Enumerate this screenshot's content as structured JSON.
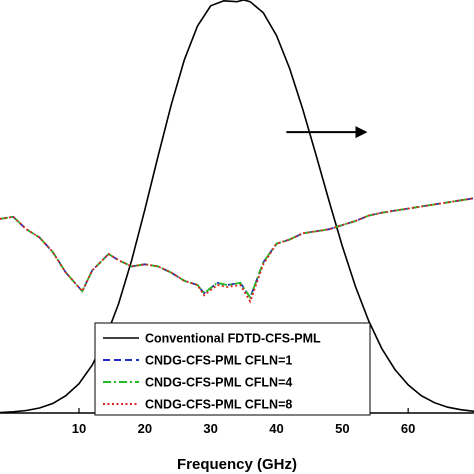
{
  "chart_data": {
    "type": "line",
    "xlabel": "Frequency (GHz)",
    "xlim": [
      -2,
      70
    ],
    "x_ticks": [
      "10",
      "20",
      "30",
      "40",
      "50",
      "60"
    ],
    "x_tick_values": [
      10,
      20,
      30,
      40,
      50,
      60
    ],
    "left_ylim": [
      0,
      1
    ],
    "right_ylim": [
      0,
      1
    ],
    "grid": false,
    "legend_position": "bottom-right",
    "series": [
      {
        "name": "Conventional FDTD-CFS-PML",
        "color": "#000000",
        "dash": "solid",
        "axis": "right",
        "x": [
          -2,
          0,
          2,
          4,
          6,
          8,
          10,
          12,
          14,
          16,
          18,
          20,
          22,
          24,
          26,
          28,
          30,
          32,
          34,
          35,
          36,
          38,
          40,
          42,
          44,
          46,
          48,
          50,
          52,
          54,
          56,
          58,
          60,
          62,
          64,
          66,
          68,
          70
        ],
        "y": [
          0.001,
          0.003,
          0.006,
          0.012,
          0.023,
          0.042,
          0.071,
          0.116,
          0.18,
          0.264,
          0.37,
          0.492,
          0.621,
          0.746,
          0.855,
          0.937,
          0.986,
          0.998,
          0.996,
          1.0,
          0.996,
          0.969,
          0.914,
          0.834,
          0.735,
          0.625,
          0.512,
          0.404,
          0.306,
          0.223,
          0.156,
          0.105,
          0.068,
          0.042,
          0.025,
          0.014,
          0.008,
          0.004
        ]
      },
      {
        "name": "CNDG-CFS-PML CFLN=1",
        "color": "#1f2fbf",
        "dash": "dashed",
        "axis": "left",
        "x": [
          -2,
          0,
          2,
          4,
          6,
          8,
          10.5,
          12,
          14.5,
          16,
          18,
          20,
          22,
          24,
          26,
          28,
          29,
          31,
          32.5,
          34.5,
          36,
          38,
          40,
          42,
          44,
          46,
          48,
          50,
          52,
          54,
          56,
          58,
          60,
          62,
          64,
          66,
          68,
          70
        ],
        "y": [
          0.47,
          0.475,
          0.445,
          0.425,
          0.39,
          0.34,
          0.295,
          0.345,
          0.385,
          0.37,
          0.355,
          0.36,
          0.355,
          0.34,
          0.32,
          0.31,
          0.29,
          0.315,
          0.31,
          0.315,
          0.28,
          0.365,
          0.41,
          0.42,
          0.435,
          0.44,
          0.445,
          0.455,
          0.465,
          0.478,
          0.485,
          0.49,
          0.495,
          0.5,
          0.505,
          0.51,
          0.515,
          0.52
        ]
      },
      {
        "name": "CNDG-CFS-PML CFLN=4",
        "color": "#22bb22",
        "dash": "dashdot",
        "axis": "left",
        "x": [
          -2,
          0,
          2,
          4,
          6,
          8,
          10.5,
          12,
          14.5,
          16,
          18,
          20,
          22,
          24,
          26,
          28,
          29,
          31,
          32.5,
          34.5,
          36,
          38,
          40,
          42,
          44,
          46,
          48,
          50,
          52,
          54,
          56,
          58,
          60,
          62,
          64,
          66,
          68,
          70
        ],
        "y": [
          0.47,
          0.475,
          0.445,
          0.425,
          0.39,
          0.34,
          0.295,
          0.345,
          0.385,
          0.37,
          0.355,
          0.36,
          0.355,
          0.34,
          0.32,
          0.31,
          0.29,
          0.315,
          0.31,
          0.315,
          0.28,
          0.365,
          0.41,
          0.42,
          0.435,
          0.44,
          0.445,
          0.455,
          0.465,
          0.478,
          0.485,
          0.49,
          0.495,
          0.5,
          0.505,
          0.51,
          0.515,
          0.52
        ]
      },
      {
        "name": "CNDG-CFS-PML CFLN=8",
        "color": "#dd2222",
        "dash": "dotted",
        "axis": "left",
        "x": [
          -2,
          0,
          2,
          4,
          6,
          8,
          10.5,
          12,
          14.5,
          16,
          18,
          20,
          22,
          24,
          26,
          28,
          29,
          31,
          32.5,
          34.5,
          36,
          38,
          40,
          42,
          44,
          46,
          48,
          50,
          52,
          54,
          56,
          58,
          60,
          62,
          64,
          66,
          68,
          70
        ],
        "y": [
          0.47,
          0.475,
          0.445,
          0.425,
          0.39,
          0.34,
          0.295,
          0.345,
          0.385,
          0.37,
          0.355,
          0.36,
          0.355,
          0.34,
          0.32,
          0.31,
          0.285,
          0.31,
          0.305,
          0.31,
          0.27,
          0.36,
          0.41,
          0.42,
          0.435,
          0.44,
          0.445,
          0.455,
          0.465,
          0.478,
          0.485,
          0.49,
          0.495,
          0.5,
          0.505,
          0.51,
          0.515,
          0.52
        ]
      }
    ],
    "annotations": [
      {
        "type": "arrow",
        "direction": "right",
        "meaning": "points to the right axis for the Conventional FDTD-CFS-PML curve"
      }
    ]
  }
}
